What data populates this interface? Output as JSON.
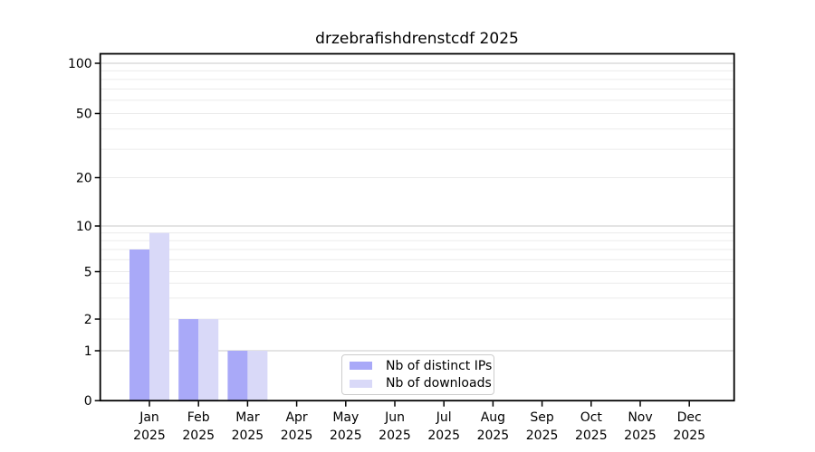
{
  "title": "drzebrafishdrenstcdf 2025",
  "colors": {
    "distinct_ips": "#a9a9f8",
    "downloads": "#d9d9f8",
    "grid_decade": "#c9c9c9",
    "grid_minor": "#ebebeb",
    "spine": "#000000",
    "legend_border": "#cccccc",
    "background": "#ffffff",
    "text": "#000000"
  },
  "legend": {
    "items": [
      {
        "label": "Nb of distinct IPs",
        "series": "distinct_ips"
      },
      {
        "label": "Nb of downloads",
        "series": "downloads"
      }
    ]
  },
  "chart_data": {
    "type": "bar",
    "title": "drzebrafishdrenstcdf 2025",
    "categories": [
      "Jan 2025",
      "Feb 2025",
      "Mar 2025",
      "Apr 2025",
      "May 2025",
      "Jun 2025",
      "Jul 2025",
      "Aug 2025",
      "Sep 2025",
      "Oct 2025",
      "Nov 2025",
      "Dec 2025"
    ],
    "x_ticks": [
      {
        "line1": "Jan",
        "line2": "2025"
      },
      {
        "line1": "Feb",
        "line2": "2025"
      },
      {
        "line1": "Mar",
        "line2": "2025"
      },
      {
        "line1": "Apr",
        "line2": "2025"
      },
      {
        "line1": "May",
        "line2": "2025"
      },
      {
        "line1": "Jun",
        "line2": "2025"
      },
      {
        "line1": "Jul",
        "line2": "2025"
      },
      {
        "line1": "Aug",
        "line2": "2025"
      },
      {
        "line1": "Sep",
        "line2": "2025"
      },
      {
        "line1": "Oct",
        "line2": "2025"
      },
      {
        "line1": "Nov",
        "line2": "2025"
      },
      {
        "line1": "Dec",
        "line2": "2025"
      }
    ],
    "series": [
      {
        "name": "Nb of distinct IPs",
        "color": "#a9a9f8",
        "values": [
          7,
          2,
          1,
          0,
          0,
          0,
          0,
          0,
          0,
          0,
          0,
          0
        ]
      },
      {
        "name": "Nb of downloads",
        "color": "#d9d9f8",
        "values": [
          9,
          2,
          1,
          0,
          0,
          0,
          0,
          0,
          0,
          0,
          0,
          0
        ]
      }
    ],
    "y_axis": {
      "scale": "log-like",
      "ticks": [
        0,
        1,
        2,
        5,
        10,
        20,
        50,
        100
      ],
      "tick_labels": [
        "0",
        "1",
        "2",
        "5",
        "10",
        "20",
        "50",
        "100"
      ],
      "minor_gridlines": [
        3,
        4,
        6,
        7,
        8,
        9,
        30,
        40,
        60,
        70,
        80,
        90
      ],
      "decade_gridlines": [
        1,
        10,
        100
      ],
      "ylim": [
        0,
        115
      ]
    },
    "xlabel": "",
    "ylabel": "",
    "grid": "horizontal",
    "legend_position": "lower center"
  }
}
